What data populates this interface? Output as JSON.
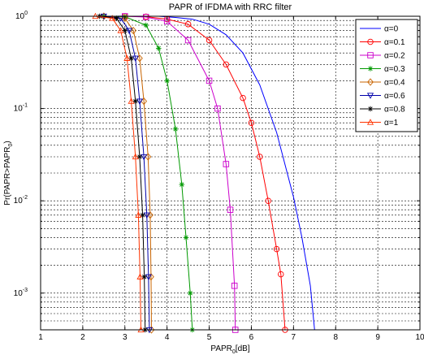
{
  "chart_data": {
    "type": "line",
    "title": "PAPR of IFDMA with RRC filter",
    "xlabel": {
      "base": "PAPR",
      "sub": "0",
      "rest": "[dB]"
    },
    "ylabel": {
      "base": "Pr(PAPR>PAPR",
      "sub": "0",
      "rest": ")"
    },
    "xlim": [
      1,
      10
    ],
    "ylim": [
      0.0004,
      1
    ],
    "yscale": "log",
    "xticks": [
      "1",
      "2",
      "3",
      "4",
      "5",
      "6",
      "7",
      "8",
      "9",
      "10"
    ],
    "yticks": [
      {
        "value": 1,
        "base": "10",
        "exp": "0"
      },
      {
        "value": 0.1,
        "base": "10",
        "exp": "-1"
      },
      {
        "value": 0.01,
        "base": "10",
        "exp": "-2"
      },
      {
        "value": 0.001,
        "base": "10",
        "exp": "-3"
      }
    ],
    "grid": true,
    "legend_position": "top-right",
    "series": [
      {
        "name": "α=0",
        "color": "#0000ff",
        "marker": "none",
        "x": [
          3.8,
          4.2,
          4.6,
          5.0,
          5.4,
          5.8,
          6.2,
          6.6,
          7.0,
          7.2,
          7.4,
          7.5
        ],
        "y": [
          1,
          0.97,
          0.93,
          0.82,
          0.63,
          0.4,
          0.18,
          0.055,
          0.011,
          0.004,
          0.0012,
          0.0004
        ]
      },
      {
        "name": "α=0.1",
        "color": "#ff0000",
        "marker": "circle",
        "x": [
          3.0,
          3.5,
          4.0,
          4.5,
          5.0,
          5.4,
          5.8,
          6.0,
          6.2,
          6.4,
          6.6,
          6.7,
          6.8
        ],
        "y": [
          1,
          0.99,
          0.93,
          0.82,
          0.55,
          0.3,
          0.13,
          0.07,
          0.03,
          0.01,
          0.003,
          0.0016,
          0.0004
        ]
      },
      {
        "name": "α=0.2",
        "color": "#cc00cc",
        "marker": "square",
        "x": [
          3.0,
          3.5,
          4.0,
          4.5,
          5.0,
          5.2,
          5.4,
          5.5,
          5.6,
          5.62
        ],
        "y": [
          1,
          0.98,
          0.88,
          0.55,
          0.2,
          0.1,
          0.025,
          0.008,
          0.0012,
          0.0004
        ]
      },
      {
        "name": "α=0.3",
        "color": "#009900",
        "marker": "star",
        "x": [
          2.5,
          3.0,
          3.5,
          3.8,
          4.0,
          4.2,
          4.35,
          4.45,
          4.55,
          4.6
        ],
        "y": [
          1,
          0.99,
          0.8,
          0.45,
          0.2,
          0.06,
          0.015,
          0.004,
          0.001,
          0.0004
        ]
      },
      {
        "name": "α=0.4",
        "color": "#c86400",
        "marker": "diamond",
        "x": [
          2.5,
          3.0,
          3.2,
          3.35,
          3.45,
          3.55,
          3.6,
          3.62,
          3.63
        ],
        "y": [
          1,
          0.95,
          0.7,
          0.35,
          0.12,
          0.03,
          0.007,
          0.0015,
          0.0004
        ]
      },
      {
        "name": "α=0.6",
        "color": "#0000aa",
        "marker": "triangle-down",
        "x": [
          2.5,
          2.9,
          3.1,
          3.25,
          3.35,
          3.45,
          3.52,
          3.56,
          3.58
        ],
        "y": [
          1,
          0.95,
          0.7,
          0.35,
          0.12,
          0.03,
          0.007,
          0.0015,
          0.0004
        ]
      },
      {
        "name": "α=0.8",
        "color": "#000000",
        "marker": "star",
        "x": [
          2.4,
          2.8,
          3.0,
          3.15,
          3.25,
          3.35,
          3.42,
          3.46,
          3.48
        ],
        "y": [
          1,
          0.95,
          0.7,
          0.35,
          0.12,
          0.03,
          0.007,
          0.0015,
          0.0004
        ]
      },
      {
        "name": "α=1",
        "color": "#ff3300",
        "marker": "triangle-up",
        "x": [
          2.3,
          2.7,
          2.9,
          3.05,
          3.15,
          3.25,
          3.32,
          3.36,
          3.38
        ],
        "y": [
          1,
          0.95,
          0.7,
          0.35,
          0.12,
          0.03,
          0.007,
          0.0015,
          0.0004
        ]
      }
    ]
  }
}
